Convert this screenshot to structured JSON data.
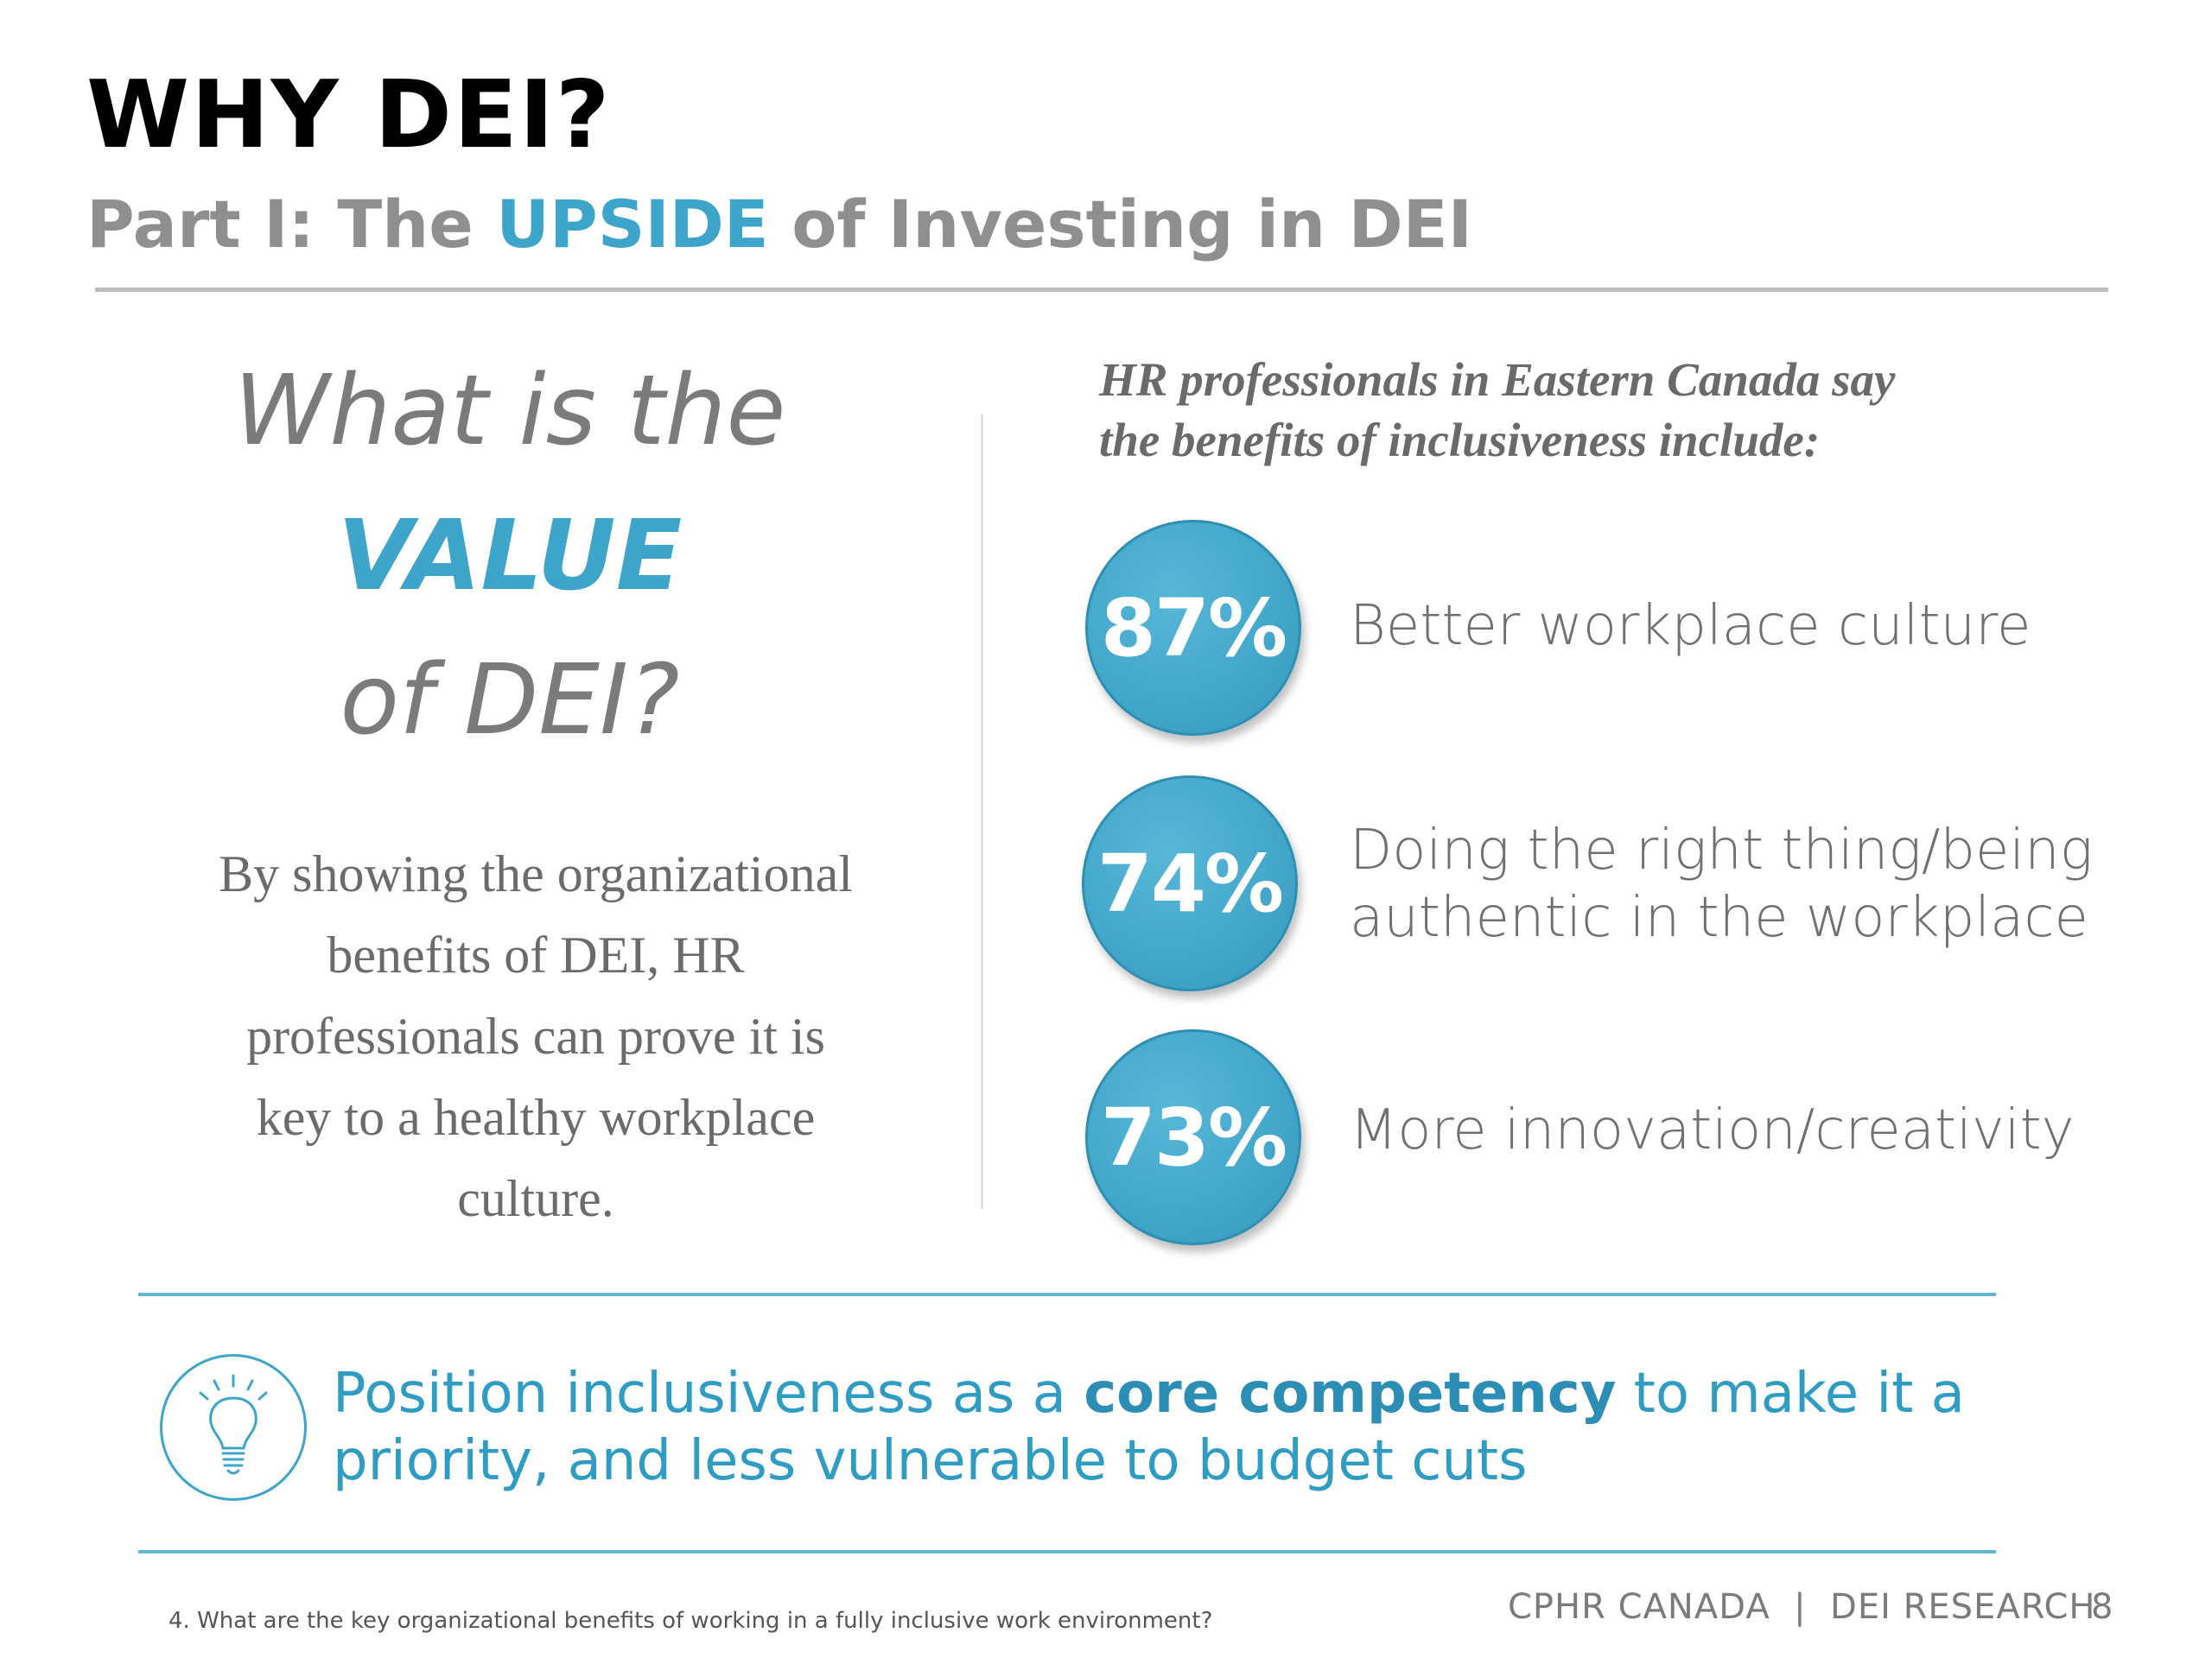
{
  "header": {
    "title": "WHY DEI?",
    "subtitle_prefix": "Part I: The ",
    "subtitle_highlight": "UPSIDE",
    "subtitle_suffix": " of Investing in DEI"
  },
  "left": {
    "question_line1": "What is the",
    "question_line2": "VALUE",
    "question_line3": "of DEI?",
    "body": "By showing the organizational benefits of DEI, HR professionals can prove it is key to a healthy workplace culture."
  },
  "right": {
    "heading_line1": "HR professionals in Eastern Canada say",
    "heading_line2": "the benefits of inclusiveness include:",
    "stats": [
      {
        "value": "87%",
        "label_line1": "Better workplace culture",
        "label_line2": ""
      },
      {
        "value": "74%",
        "label_line1": "Doing the right thing/being",
        "label_line2": "authentic in the workplace"
      },
      {
        "value": "73%",
        "label_line1": "More innovation/creativity",
        "label_line2": ""
      }
    ]
  },
  "callout": {
    "prefix": "Position inclusiveness as a ",
    "emphasis": "core competency",
    "suffix": " to make it a priority, and less vulnerable to budget cuts",
    "icon": "lightbulb-icon"
  },
  "footer": {
    "footnote": "4. What are the key organizational benefits of working in a fully inclusive work environment?",
    "brand": "CPHR CANADA  |  DEI RESEARCH",
    "page_number": "8"
  },
  "colors": {
    "accent": "#3da5c9",
    "accent_dark": "#2c8db5",
    "gray_text": "#7b7b7b",
    "rule_gray": "#bdbdbd"
  }
}
